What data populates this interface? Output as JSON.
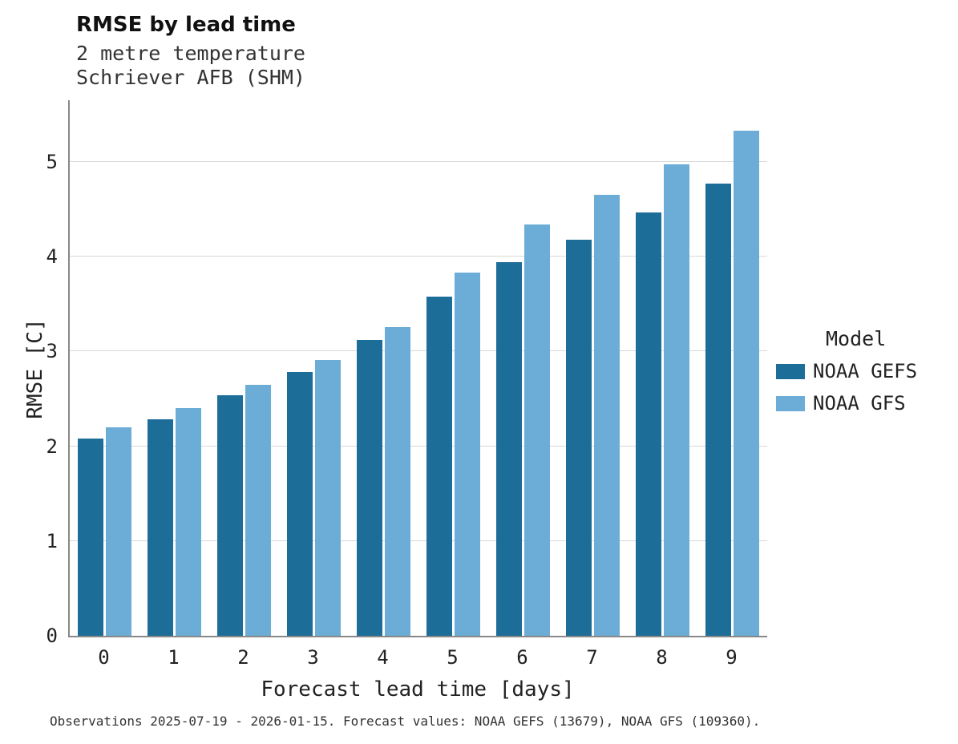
{
  "chart_data": {
    "type": "bar",
    "title": "RMSE by lead time",
    "subtitle_line1": "2 metre temperature",
    "subtitle_line2": "Schriever AFB (SHM)",
    "xlabel": "Forecast lead time [days]",
    "ylabel": "RMSE [C]",
    "legend_title": "Model",
    "categories": [
      "0",
      "1",
      "2",
      "3",
      "4",
      "5",
      "6",
      "7",
      "8",
      "9"
    ],
    "series": [
      {
        "name": "NOAA GEFS",
        "color": "#1d6d99",
        "values": [
          2.08,
          2.28,
          2.54,
          2.78,
          3.12,
          3.58,
          3.94,
          4.18,
          4.47,
          4.77
        ]
      },
      {
        "name": "NOAA GFS",
        "color": "#6badd6",
        "values": [
          2.2,
          2.4,
          2.65,
          2.91,
          3.26,
          3.83,
          4.34,
          4.65,
          4.97,
          5.33
        ]
      }
    ],
    "ylim": [
      0,
      5.65
    ],
    "yticks": [
      0,
      1,
      2,
      3,
      4,
      5
    ],
    "grid": "horizontal",
    "legend_position": "right",
    "caption": "Observations 2025-07-19 - 2026-01-15. Forecast values: NOAA GEFS (13679), NOAA GFS (109360)."
  }
}
